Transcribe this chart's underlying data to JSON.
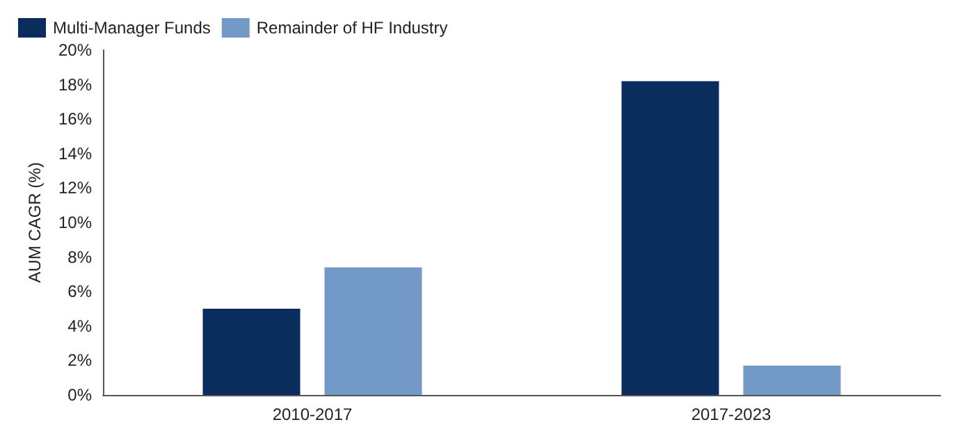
{
  "chart_data": {
    "type": "bar",
    "categories": [
      "2010-2017",
      "2017-2023"
    ],
    "ylabel": "AUM CAGR (%)",
    "ylim": [
      0,
      20
    ],
    "yticks": [
      {
        "value": 0,
        "label": "0%"
      },
      {
        "value": 2,
        "label": "2%"
      },
      {
        "value": 4,
        "label": "4%"
      },
      {
        "value": 6,
        "label": "6%"
      },
      {
        "value": 8,
        "label": "8%"
      },
      {
        "value": 10,
        "label": "10%"
      },
      {
        "value": 12,
        "label": "12%"
      },
      {
        "value": 14,
        "label": "14%"
      },
      {
        "value": 16,
        "label": "16%"
      },
      {
        "value": 18,
        "label": "18%"
      },
      {
        "value": 20,
        "label": "20%"
      }
    ],
    "grid": false,
    "legend": "top left",
    "series": [
      {
        "name": "Multi-Manager Funds",
        "color": "#0b2d5e",
        "values": [
          5.0,
          18.2
        ]
      },
      {
        "name": "Remainder of HF Industry",
        "color": "#7399c6",
        "values": [
          7.4,
          1.7
        ]
      }
    ]
  }
}
